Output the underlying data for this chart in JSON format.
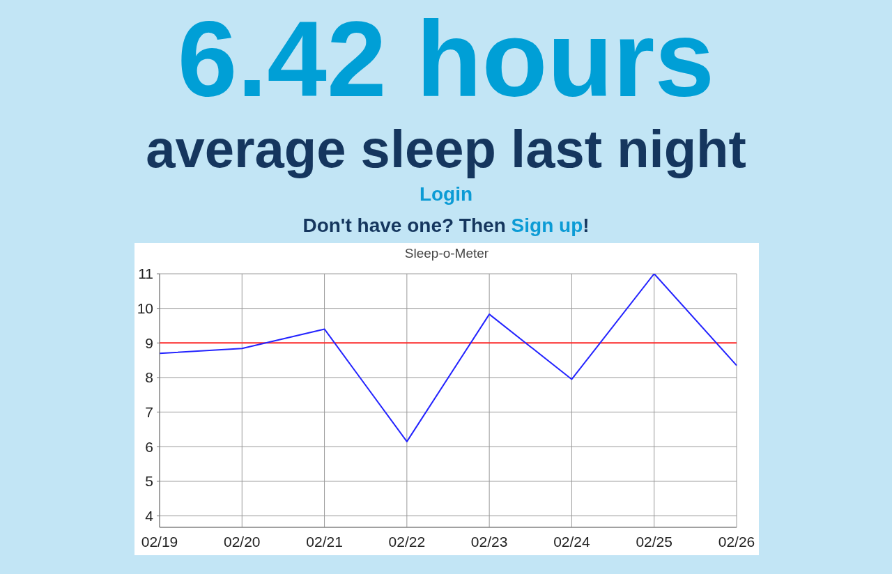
{
  "chart_data": {
    "type": "line",
    "title": "Sleep-o-Meter",
    "annotations": [
      "6.42 hours",
      "average sleep last night",
      "Login",
      "Don't have one? Then",
      "Sign up",
      "!"
    ],
    "categories": [
      "02/19",
      "02/20",
      "02/21",
      "02/22",
      "02/23",
      "02/24",
      "02/25",
      "02/26"
    ],
    "series": [
      {
        "color": "#2323ff",
        "values": [
          8.7,
          8.84,
          9.4,
          6.15,
          9.83,
          7.95,
          11,
          8.35
        ]
      }
    ],
    "ylim": [
      3.67,
      11
    ],
    "yticks": [
      4,
      5,
      6,
      7,
      8,
      9,
      10,
      11
    ],
    "grid": true,
    "ref_lines": [
      {
        "axis": "y",
        "value": 9,
        "color": "#ff2b2b"
      }
    ]
  }
}
